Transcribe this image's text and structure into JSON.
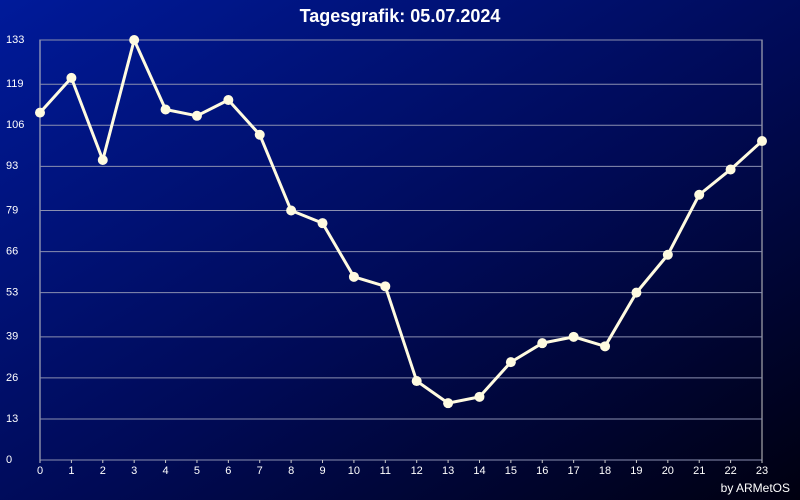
{
  "chart_data": {
    "type": "line",
    "title": "Tagesgrafik: 05.07.2024",
    "credit": "by ARMetOS",
    "x": [
      0,
      1,
      2,
      3,
      4,
      5,
      6,
      7,
      8,
      9,
      10,
      11,
      12,
      13,
      14,
      15,
      16,
      17,
      18,
      19,
      20,
      21,
      22,
      23
    ],
    "series": [
      {
        "color": "#fffbe0",
        "values": [
          110,
          121,
          95,
          133,
          111,
          109,
          114,
          103,
          79,
          75,
          58,
          55,
          25,
          18,
          20,
          31,
          37,
          39,
          36,
          53,
          65,
          84,
          92,
          101
        ]
      }
    ],
    "xlim": [
      0,
      23
    ],
    "xticks": [
      0,
      1,
      2,
      3,
      4,
      5,
      6,
      7,
      8,
      9,
      10,
      11,
      12,
      13,
      14,
      15,
      16,
      17,
      18,
      19,
      20,
      21,
      22,
      23
    ],
    "ylim": [
      0,
      133
    ],
    "yticks": [
      0,
      13,
      26,
      39,
      53,
      66,
      79,
      93,
      106,
      119,
      133
    ],
    "grid": true
  }
}
